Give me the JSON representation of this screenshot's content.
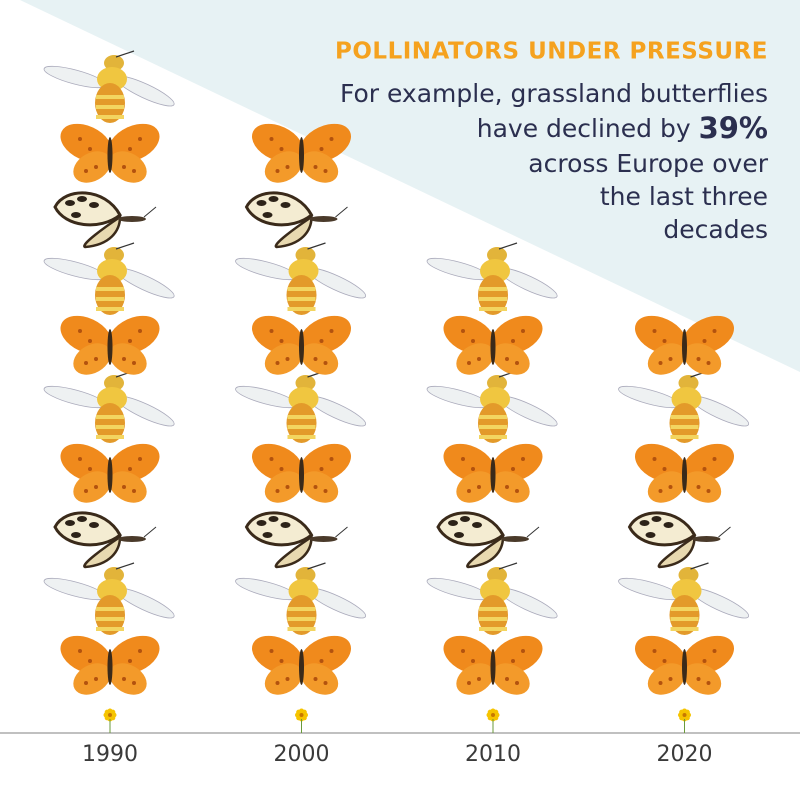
{
  "chart_data": {
    "type": "pictogram",
    "title": "POLLINATORS UNDER PRESSURE",
    "subtitle_lines": [
      "For example, grassland butterflies",
      "have declined by",
      "across Europe over",
      "the last three",
      "decades"
    ],
    "highlight": "39%",
    "categories": [
      "1990",
      "2000",
      "2010",
      "2020"
    ],
    "values": [
      10,
      9,
      7,
      6
    ]
  }
}
